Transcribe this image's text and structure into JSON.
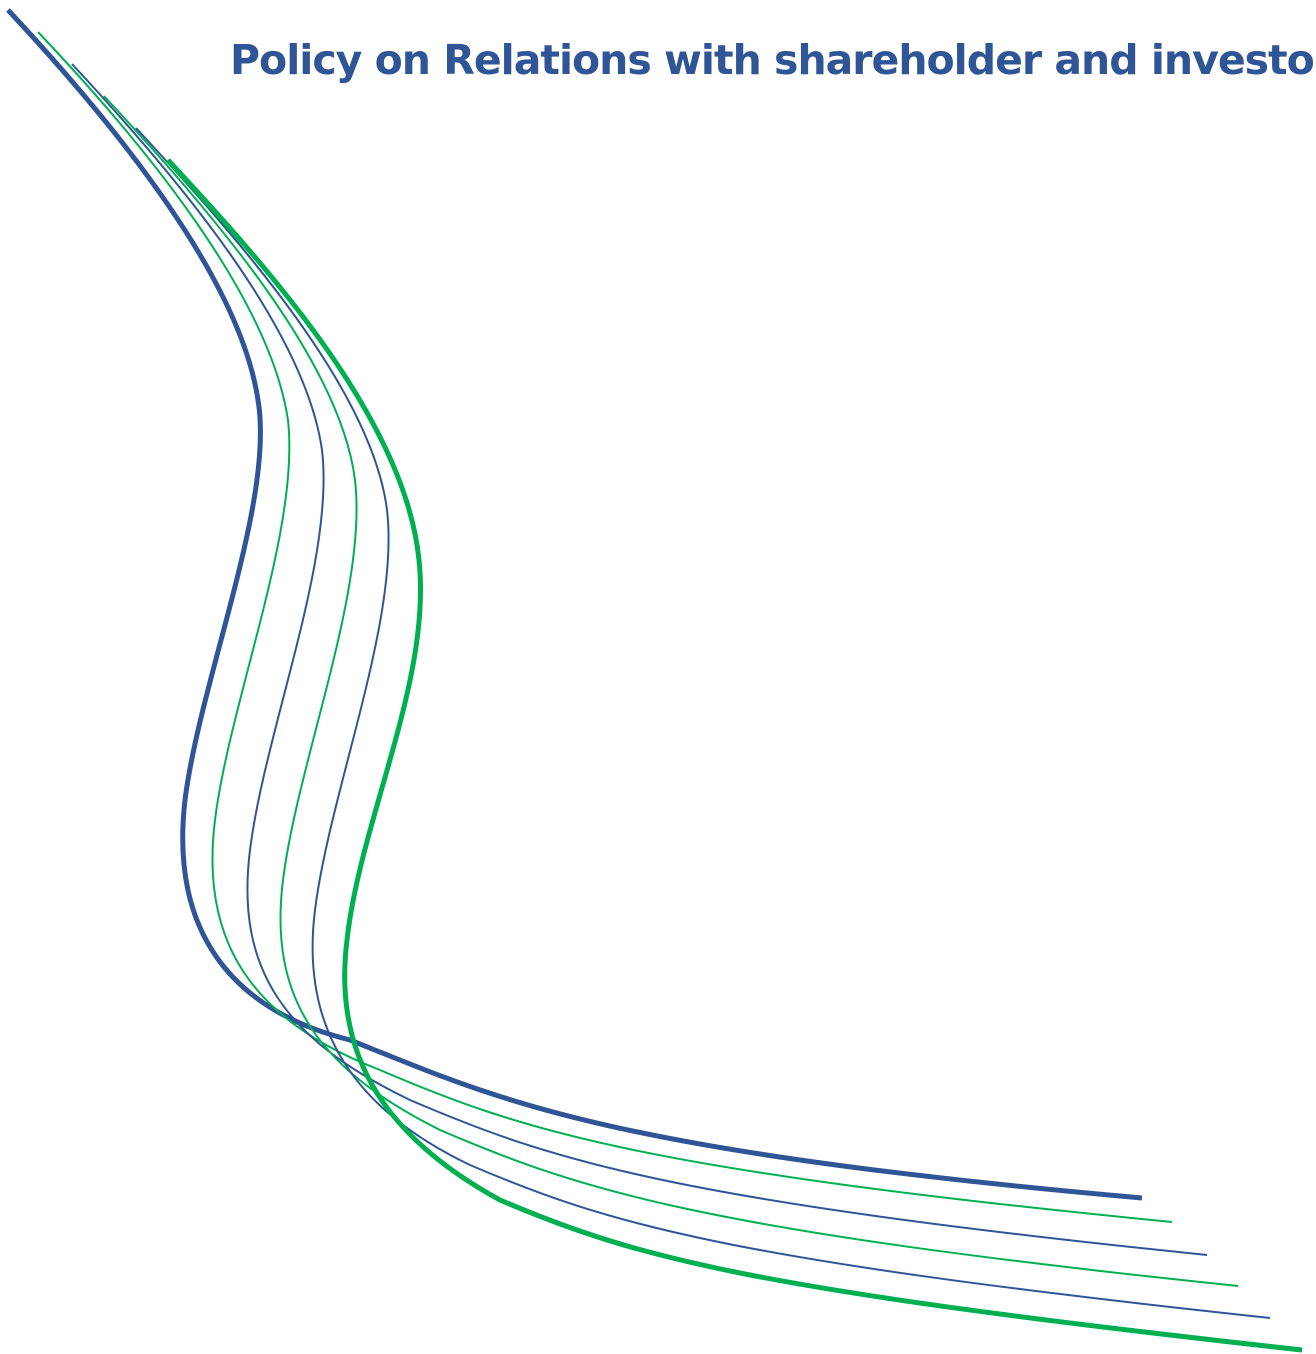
{
  "header": {
    "title": "Policy on Relations with shareholder and investors"
  }
}
